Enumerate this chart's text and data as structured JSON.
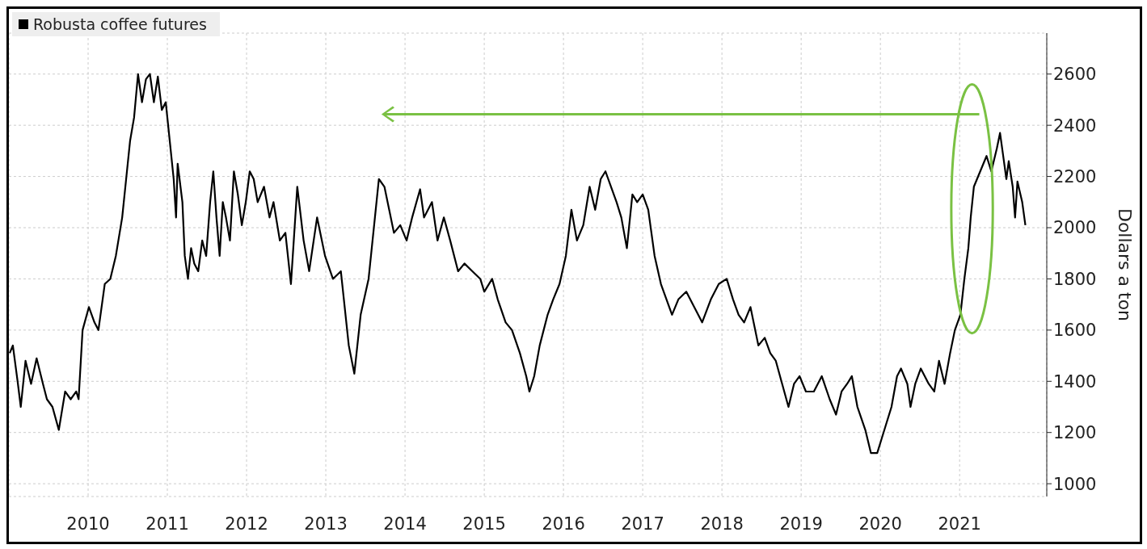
{
  "chart_data": {
    "type": "line",
    "ylabel": "Dollars a ton",
    "legend": "top left",
    "grid": true,
    "line_style": "solid",
    "marker": "none",
    "xlim": [
      2009.5,
      2022.6
    ],
    "ylim": [
      950,
      2760
    ],
    "xticks": [
      {
        "value": 2010.5,
        "label": "2010"
      },
      {
        "value": 2011.5,
        "label": "2011"
      },
      {
        "value": 2012.5,
        "label": "2012"
      },
      {
        "value": 2013.5,
        "label": "2013"
      },
      {
        "value": 2014.5,
        "label": "2014"
      },
      {
        "value": 2015.5,
        "label": "2015"
      },
      {
        "value": 2016.5,
        "label": "2016"
      },
      {
        "value": 2017.5,
        "label": "2017"
      },
      {
        "value": 2018.5,
        "label": "2018"
      },
      {
        "value": 2019.5,
        "label": "2019"
      },
      {
        "value": 2020.5,
        "label": "2020"
      },
      {
        "value": 2021.5,
        "label": "2021"
      }
    ],
    "yticks": [
      1000,
      1200,
      1400,
      1600,
      1800,
      2000,
      2200,
      2400,
      2600
    ],
    "series": [
      {
        "name": "Robusta coffee futures",
        "color": "#000000",
        "x": [
          2009.51,
          2009.55,
          2009.61,
          2009.65,
          2009.71,
          2009.78,
          2009.85,
          2009.93,
          2009.98,
          2010.05,
          2010.13,
          2010.21,
          2010.28,
          2010.35,
          2010.38,
          2010.43,
          2010.51,
          2010.58,
          2010.63,
          2010.71,
          2010.78,
          2010.85,
          2010.93,
          2010.98,
          2011.03,
          2011.08,
          2011.13,
          2011.18,
          2011.23,
          2011.28,
          2011.33,
          2011.38,
          2011.43,
          2011.48,
          2011.53,
          2011.58,
          2011.61,
          2011.63,
          2011.69,
          2011.72,
          2011.76,
          2011.8,
          2011.84,
          2011.89,
          2011.94,
          2011.99,
          2012.04,
          2012.08,
          2012.12,
          2012.16,
          2012.2,
          2012.24,
          2012.29,
          2012.34,
          2012.39,
          2012.44,
          2012.49,
          2012.54,
          2012.59,
          2012.64,
          2012.72,
          2012.79,
          2012.84,
          2012.92,
          2012.99,
          2013.06,
          2013.14,
          2013.22,
          2013.29,
          2013.39,
          2013.49,
          2013.59,
          2013.69,
          2013.79,
          2013.86,
          2013.94,
          2014.04,
          2014.12,
          2014.17,
          2014.24,
          2014.3,
          2014.36,
          2014.44,
          2014.52,
          2014.59,
          2014.69,
          2014.74,
          2014.84,
          2014.91,
          2014.99,
          2015.07,
          2015.17,
          2015.25,
          2015.35,
          2015.45,
          2015.5,
          2015.6,
          2015.67,
          2015.77,
          2015.85,
          2015.95,
          2016.03,
          2016.07,
          2016.13,
          2016.2,
          2016.3,
          2016.37,
          2016.45,
          2016.53,
          2016.6,
          2016.67,
          2016.75,
          2016.83,
          2016.9,
          2016.97,
          2017.03,
          2017.1,
          2017.17,
          2017.23,
          2017.3,
          2017.37,
          2017.43,
          2017.5,
          2017.57,
          2017.65,
          2017.73,
          2017.8,
          2017.87,
          2017.95,
          2018.05,
          2018.15,
          2018.25,
          2018.36,
          2018.46,
          2018.56,
          2018.64,
          2018.71,
          2018.78,
          2018.86,
          2018.96,
          2019.04,
          2019.11,
          2019.18,
          2019.26,
          2019.34,
          2019.41,
          2019.48,
          2019.56,
          2019.66,
          2019.76,
          2019.86,
          2019.94,
          2020.01,
          2020.08,
          2020.14,
          2020.21,
          2020.31,
          2020.38,
          2020.46,
          2020.51,
          2020.58,
          2020.64,
          2020.71,
          2020.76,
          2020.84,
          2020.88,
          2020.94,
          2021.01,
          2021.11,
          2021.18,
          2021.24,
          2021.31,
          2021.38,
          2021.44,
          2021.51,
          2021.56,
          2021.61,
          2021.64,
          2021.68,
          2021.76,
          2021.84,
          2021.9,
          2021.97,
          2022.01,
          2022.05,
          2022.09,
          2022.12,
          2022.17,
          2022.2,
          2022.23,
          2022.29,
          2022.33
        ],
        "values": [
          1510,
          1540,
          1400,
          1300,
          1480,
          1390,
          1490,
          1390,
          1330,
          1300,
          1210,
          1360,
          1330,
          1360,
          1330,
          1600,
          1690,
          1630,
          1600,
          1780,
          1800,
          1890,
          2040,
          2190,
          2340,
          2430,
          2600,
          2490,
          2580,
          2600,
          2490,
          2590,
          2460,
          2490,
          2340,
          2190,
          2040,
          2250,
          2100,
          1890,
          1800,
          1920,
          1860,
          1830,
          1950,
          1890,
          2100,
          2220,
          2040,
          1890,
          2100,
          2040,
          1950,
          2220,
          2130,
          2010,
          2100,
          2220,
          2190,
          2100,
          2160,
          2040,
          2100,
          1950,
          1980,
          1780,
          2160,
          1950,
          1830,
          2040,
          1890,
          1800,
          1830,
          1540,
          1430,
          1660,
          1800,
          2040,
          2190,
          2160,
          2070,
          1980,
          2010,
          1950,
          2040,
          2150,
          2040,
          2100,
          1950,
          2040,
          1950,
          1830,
          1860,
          1830,
          1800,
          1750,
          1800,
          1720,
          1630,
          1600,
          1510,
          1420,
          1360,
          1420,
          1540,
          1660,
          1720,
          1780,
          1890,
          2070,
          1950,
          2010,
          2160,
          2070,
          2190,
          2220,
          2160,
          2100,
          2040,
          1920,
          2130,
          2100,
          2130,
          2070,
          1890,
          1780,
          1720,
          1660,
          1720,
          1750,
          1690,
          1630,
          1720,
          1780,
          1800,
          1720,
          1660,
          1630,
          1690,
          1540,
          1570,
          1510,
          1480,
          1390,
          1300,
          1390,
          1420,
          1360,
          1360,
          1420,
          1330,
          1270,
          1360,
          1390,
          1420,
          1300,
          1210,
          1120,
          1120,
          1170,
          1240,
          1300,
          1420,
          1450,
          1390,
          1300,
          1390,
          1450,
          1390,
          1360,
          1480,
          1390,
          1510,
          1600,
          1660,
          1800,
          1920,
          2040,
          2160,
          2220,
          2280,
          2220,
          2310,
          2370,
          2280,
          2190,
          2260,
          2160,
          2040,
          2180,
          2100,
          2010
        ]
      }
    ]
  }
}
